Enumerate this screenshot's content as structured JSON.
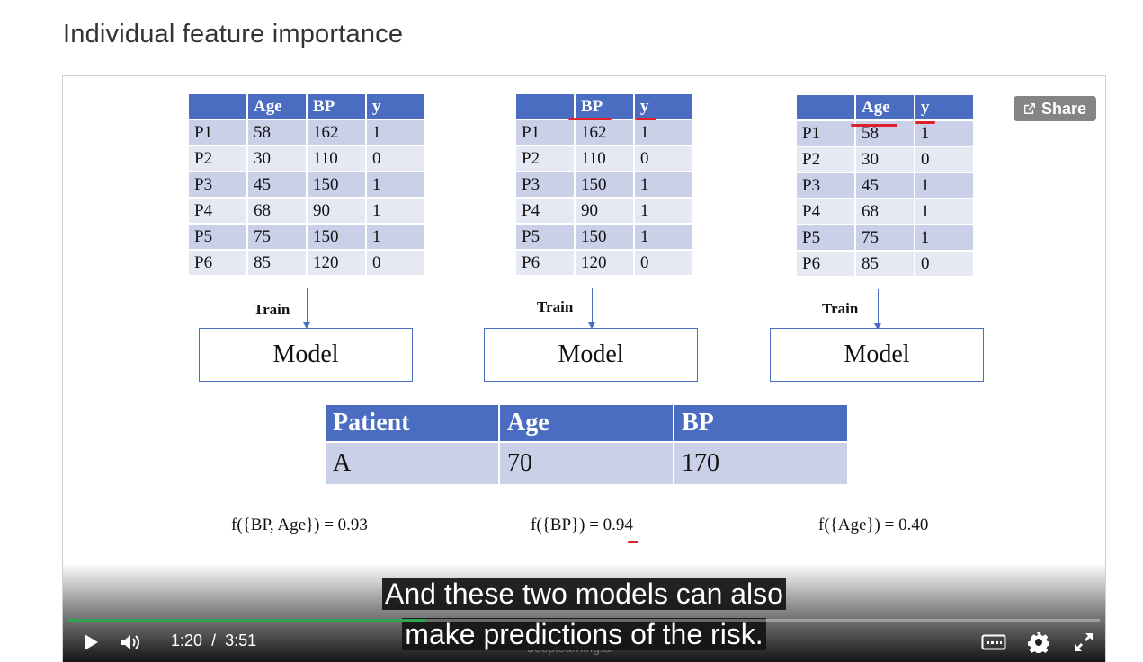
{
  "page": {
    "title": "Individual feature importance"
  },
  "tables": [
    {
      "headers": [
        "",
        "Age",
        "BP",
        "y"
      ],
      "rows": [
        [
          "P1",
          "58",
          "162",
          "1"
        ],
        [
          "P2",
          "30",
          "110",
          "0"
        ],
        [
          "P3",
          "45",
          "150",
          "1"
        ],
        [
          "P4",
          "68",
          "90",
          "1"
        ],
        [
          "P5",
          "75",
          "150",
          "1"
        ],
        [
          "P6",
          "85",
          "120",
          "0"
        ]
      ]
    },
    {
      "headers": [
        "",
        "BP",
        "y"
      ],
      "rows": [
        [
          "P1",
          "162",
          "1"
        ],
        [
          "P2",
          "110",
          "0"
        ],
        [
          "P3",
          "150",
          "1"
        ],
        [
          "P4",
          "90",
          "1"
        ],
        [
          "P5",
          "150",
          "1"
        ],
        [
          "P6",
          "120",
          "0"
        ]
      ]
    },
    {
      "headers": [
        "",
        "Age",
        "y"
      ],
      "rows": [
        [
          "P1",
          "58",
          "1"
        ],
        [
          "P2",
          "30",
          "0"
        ],
        [
          "P3",
          "45",
          "1"
        ],
        [
          "P4",
          "68",
          "1"
        ],
        [
          "P5",
          "75",
          "1"
        ],
        [
          "P6",
          "85",
          "0"
        ]
      ]
    }
  ],
  "train_label": "Train",
  "model_label": "Model",
  "patient_table": {
    "headers": [
      "Patient",
      "Age",
      "BP"
    ],
    "row": [
      "A",
      "70",
      "170"
    ]
  },
  "formulas": [
    "f({BP, Age}) = 0.93",
    "f({BP}) = 0.94",
    "f({Age}) = 0.40"
  ],
  "annotation_color": "#e0202a",
  "accent_color": "#4a6cc1",
  "player": {
    "share_label": "Share",
    "caption_line1": "And these two models can also",
    "caption_line2": "make predictions of the risk.",
    "current_time": "1:20",
    "time_separator": "/",
    "duration": "3:51",
    "progress": 0.346,
    "buffered": 0.345,
    "progress_color": "#2ea44f",
    "watermark": "deeplearning.ai",
    "icons": [
      "play-icon",
      "volume-icon",
      "captions-icon",
      "settings-gear-icon",
      "fullscreen-icon",
      "share-icon"
    ]
  }
}
